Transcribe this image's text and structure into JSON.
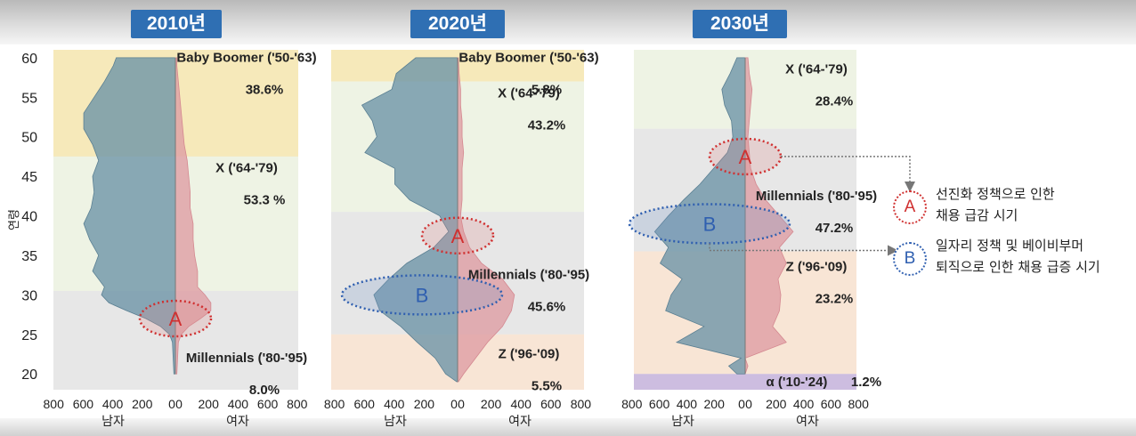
{
  "badges": [
    "2010년",
    "2020년",
    "2030년"
  ],
  "legend": [
    {
      "letter": "A",
      "line1": "선진화 정책으로 인한",
      "line2": "채용 급감 시기"
    },
    {
      "letter": "B",
      "line1": "일자리 정책 및 베이비부머",
      "line2": "퇴직으로 인한 채용 급증 시기"
    }
  ],
  "colors": {
    "badge": "#2f6fb3",
    "male": "#6e95a8",
    "female": "#df9ea4",
    "boomer": "#f6e8b4",
    "genx": "#edf3e2",
    "millennials": "#e5e5e5",
    "genz": "#f8e3d2",
    "alpha": "#c9b7de",
    "markerA": "#d03030",
    "markerB": "#2f5fb0"
  },
  "chart_data": {
    "type": "population-pyramid",
    "ylabel": "연령",
    "ylim": [
      18,
      61
    ],
    "yticks": [
      20,
      25,
      30,
      35,
      40,
      45,
      50,
      55,
      60
    ],
    "xlabel_left": "남자",
    "xlabel_right": "여자",
    "xticks_male": [
      "800",
      "600",
      "400",
      "200",
      "0"
    ],
    "xticks_female": [
      "0",
      "200",
      "400",
      "600",
      "800"
    ],
    "panels": [
      {
        "title": "2010년",
        "bands": [
          {
            "gen": "boomer",
            "from": 47.5,
            "to": 61
          },
          {
            "gen": "genx",
            "from": 30.5,
            "to": 47.5
          },
          {
            "gen": "millennials",
            "from": 18,
            "to": 30.5
          }
        ],
        "labels": [
          {
            "name": "Baby Boomer ('50-'63)",
            "pct": "38.6%",
            "y": 59.5
          },
          {
            "name": "X ('64-'79)",
            "pct": "53.3 %",
            "y": 45.5
          },
          {
            "name": "Millennials ('80-'95)",
            "pct": "8.0%",
            "y": 21.5
          }
        ],
        "ages": [
          20,
          22,
          24,
          25,
          26,
          27,
          28,
          29,
          30,
          31,
          33,
          35,
          37,
          39,
          41,
          43,
          45,
          47,
          49,
          51,
          53,
          55,
          57,
          59,
          60
        ],
        "male": [
          10,
          15,
          20,
          40,
          100,
          200,
          330,
          450,
          500,
          480,
          560,
          520,
          580,
          620,
          570,
          550,
          560,
          520,
          560,
          620,
          620,
          550,
          480,
          420,
          400
        ],
        "female": [
          10,
          15,
          20,
          40,
          90,
          170,
          240,
          240,
          200,
          150,
          150,
          130,
          120,
          120,
          100,
          100,
          90,
          80,
          60,
          50,
          40,
          30,
          20,
          10,
          10
        ],
        "markers": [
          {
            "letter": "A",
            "age": 27
          }
        ]
      },
      {
        "title": "2020년",
        "bands": [
          {
            "gen": "boomer",
            "from": 57,
            "to": 61
          },
          {
            "gen": "genx",
            "from": 40.5,
            "to": 57
          },
          {
            "gen": "millennials",
            "from": 25,
            "to": 40.5
          },
          {
            "gen": "genz",
            "from": 18,
            "to": 25
          }
        ],
        "labels": [
          {
            "name": "Baby Boomer ('50-'63)",
            "pct": "5.8%",
            "y": 59.5
          },
          {
            "name": "X ('64-'79)",
            "pct": "43.2%",
            "y": 55
          },
          {
            "name": "Millennials ('80-'95)",
            "pct": "45.6%",
            "y": 32
          },
          {
            "name": "Z ('96-'09)",
            "pct": "5.5%",
            "y": 22
          }
        ],
        "ages": [
          19,
          20,
          22,
          24,
          26,
          28,
          30,
          32,
          34,
          36,
          38,
          40,
          42,
          44,
          46,
          48,
          50,
          52,
          54,
          56,
          58,
          60
        ],
        "male": [
          5,
          80,
          150,
          270,
          380,
          520,
          560,
          460,
          340,
          160,
          60,
          120,
          320,
          420,
          420,
          620,
          540,
          570,
          640,
          440,
          410,
          280
        ],
        "female": [
          5,
          40,
          120,
          200,
          300,
          360,
          380,
          300,
          160,
          80,
          40,
          20,
          30,
          30,
          30,
          40,
          30,
          30,
          20,
          20,
          10,
          5
        ],
        "markers": [
          {
            "letter": "A",
            "age": 37.5
          },
          {
            "letter": "B",
            "age": 30
          }
        ]
      },
      {
        "title": "2030년",
        "bands": [
          {
            "gen": "genx",
            "from": 51,
            "to": 61
          },
          {
            "gen": "millennials",
            "from": 35.5,
            "to": 51
          },
          {
            "gen": "genz",
            "from": 20,
            "to": 35.5
          },
          {
            "gen": "alpha",
            "from": 18,
            "to": 20
          }
        ],
        "labels": [
          {
            "name": "X ('64-'79)",
            "pct": "28.4%",
            "y": 58
          },
          {
            "name": "Millennials ('80-'95)",
            "pct": "47.2%",
            "y": 42
          },
          {
            "name": "Z ('96-'09)",
            "pct": "23.2%",
            "y": 33
          },
          {
            "name": "α ('10-'24)",
            "pct": "1.2%",
            "y": 19
          }
        ],
        "ages": [
          20,
          21,
          22,
          24,
          26,
          28,
          30,
          32,
          34,
          36,
          38,
          40,
          42,
          44,
          46,
          48,
          50,
          52,
          54,
          56,
          58,
          60
        ],
        "male": [
          60,
          120,
          30,
          500,
          300,
          580,
          540,
          460,
          620,
          560,
          660,
          560,
          450,
          330,
          230,
          130,
          90,
          100,
          150,
          170,
          110,
          60
        ],
        "female": [
          0,
          20,
          0,
          300,
          200,
          250,
          260,
          240,
          300,
          250,
          350,
          250,
          150,
          80,
          40,
          30,
          20,
          30,
          40,
          50,
          30,
          20
        ],
        "markers": [
          {
            "letter": "A",
            "age": 47.5
          },
          {
            "letter": "B",
            "age": 39
          }
        ]
      }
    ]
  }
}
